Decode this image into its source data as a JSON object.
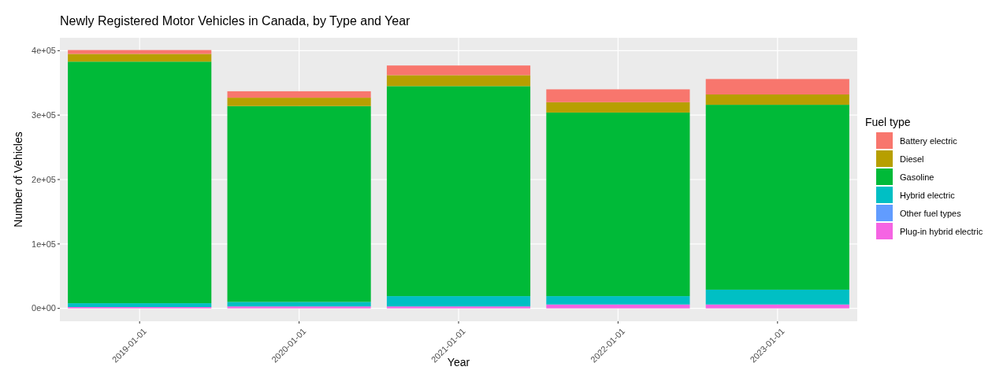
{
  "chart_data": {
    "type": "bar",
    "title": "Newly Registered Motor Vehicles in Canada, by Type and Year",
    "xlabel": "Year",
    "ylabel": "Number of Vehicles",
    "legend_title": "Fuel type",
    "categories": [
      "2019-01-01",
      "2020-01-01",
      "2021-01-01",
      "2022-01-01",
      "2023-01-01"
    ],
    "stacked": true,
    "grid": true,
    "legend": "right",
    "ylim": [
      -20000,
      420000
    ],
    "yticks": [
      {
        "value": 0,
        "label": "0e+00"
      },
      {
        "value": 100000,
        "label": "1e+05"
      },
      {
        "value": 200000,
        "label": "2e+05"
      },
      {
        "value": 300000,
        "label": "3e+05"
      },
      {
        "value": 400000,
        "label": "4e+05"
      }
    ],
    "series": [
      {
        "name": "Plug-in hybrid electric",
        "color": "#f564e3",
        "values": [
          2000,
          3000,
          3000,
          6000,
          6000
        ]
      },
      {
        "name": "Other fuel types",
        "color": "#619cff",
        "values": [
          null,
          null,
          null,
          null,
          null
        ]
      },
      {
        "name": "Hybrid electric",
        "color": "#00bfc4",
        "values": [
          6000,
          7000,
          16000,
          13000,
          23000
        ]
      },
      {
        "name": "Gasoline",
        "color": "#00ba38",
        "values": [
          375000,
          304000,
          326000,
          285000,
          287000
        ]
      },
      {
        "name": "Diesel",
        "color": "#b79f00",
        "values": [
          12000,
          13000,
          17000,
          16000,
          16000
        ]
      },
      {
        "name": "Battery electric",
        "color": "#f8766d",
        "values": [
          6000,
          10000,
          15000,
          20000,
          24000
        ]
      }
    ]
  }
}
